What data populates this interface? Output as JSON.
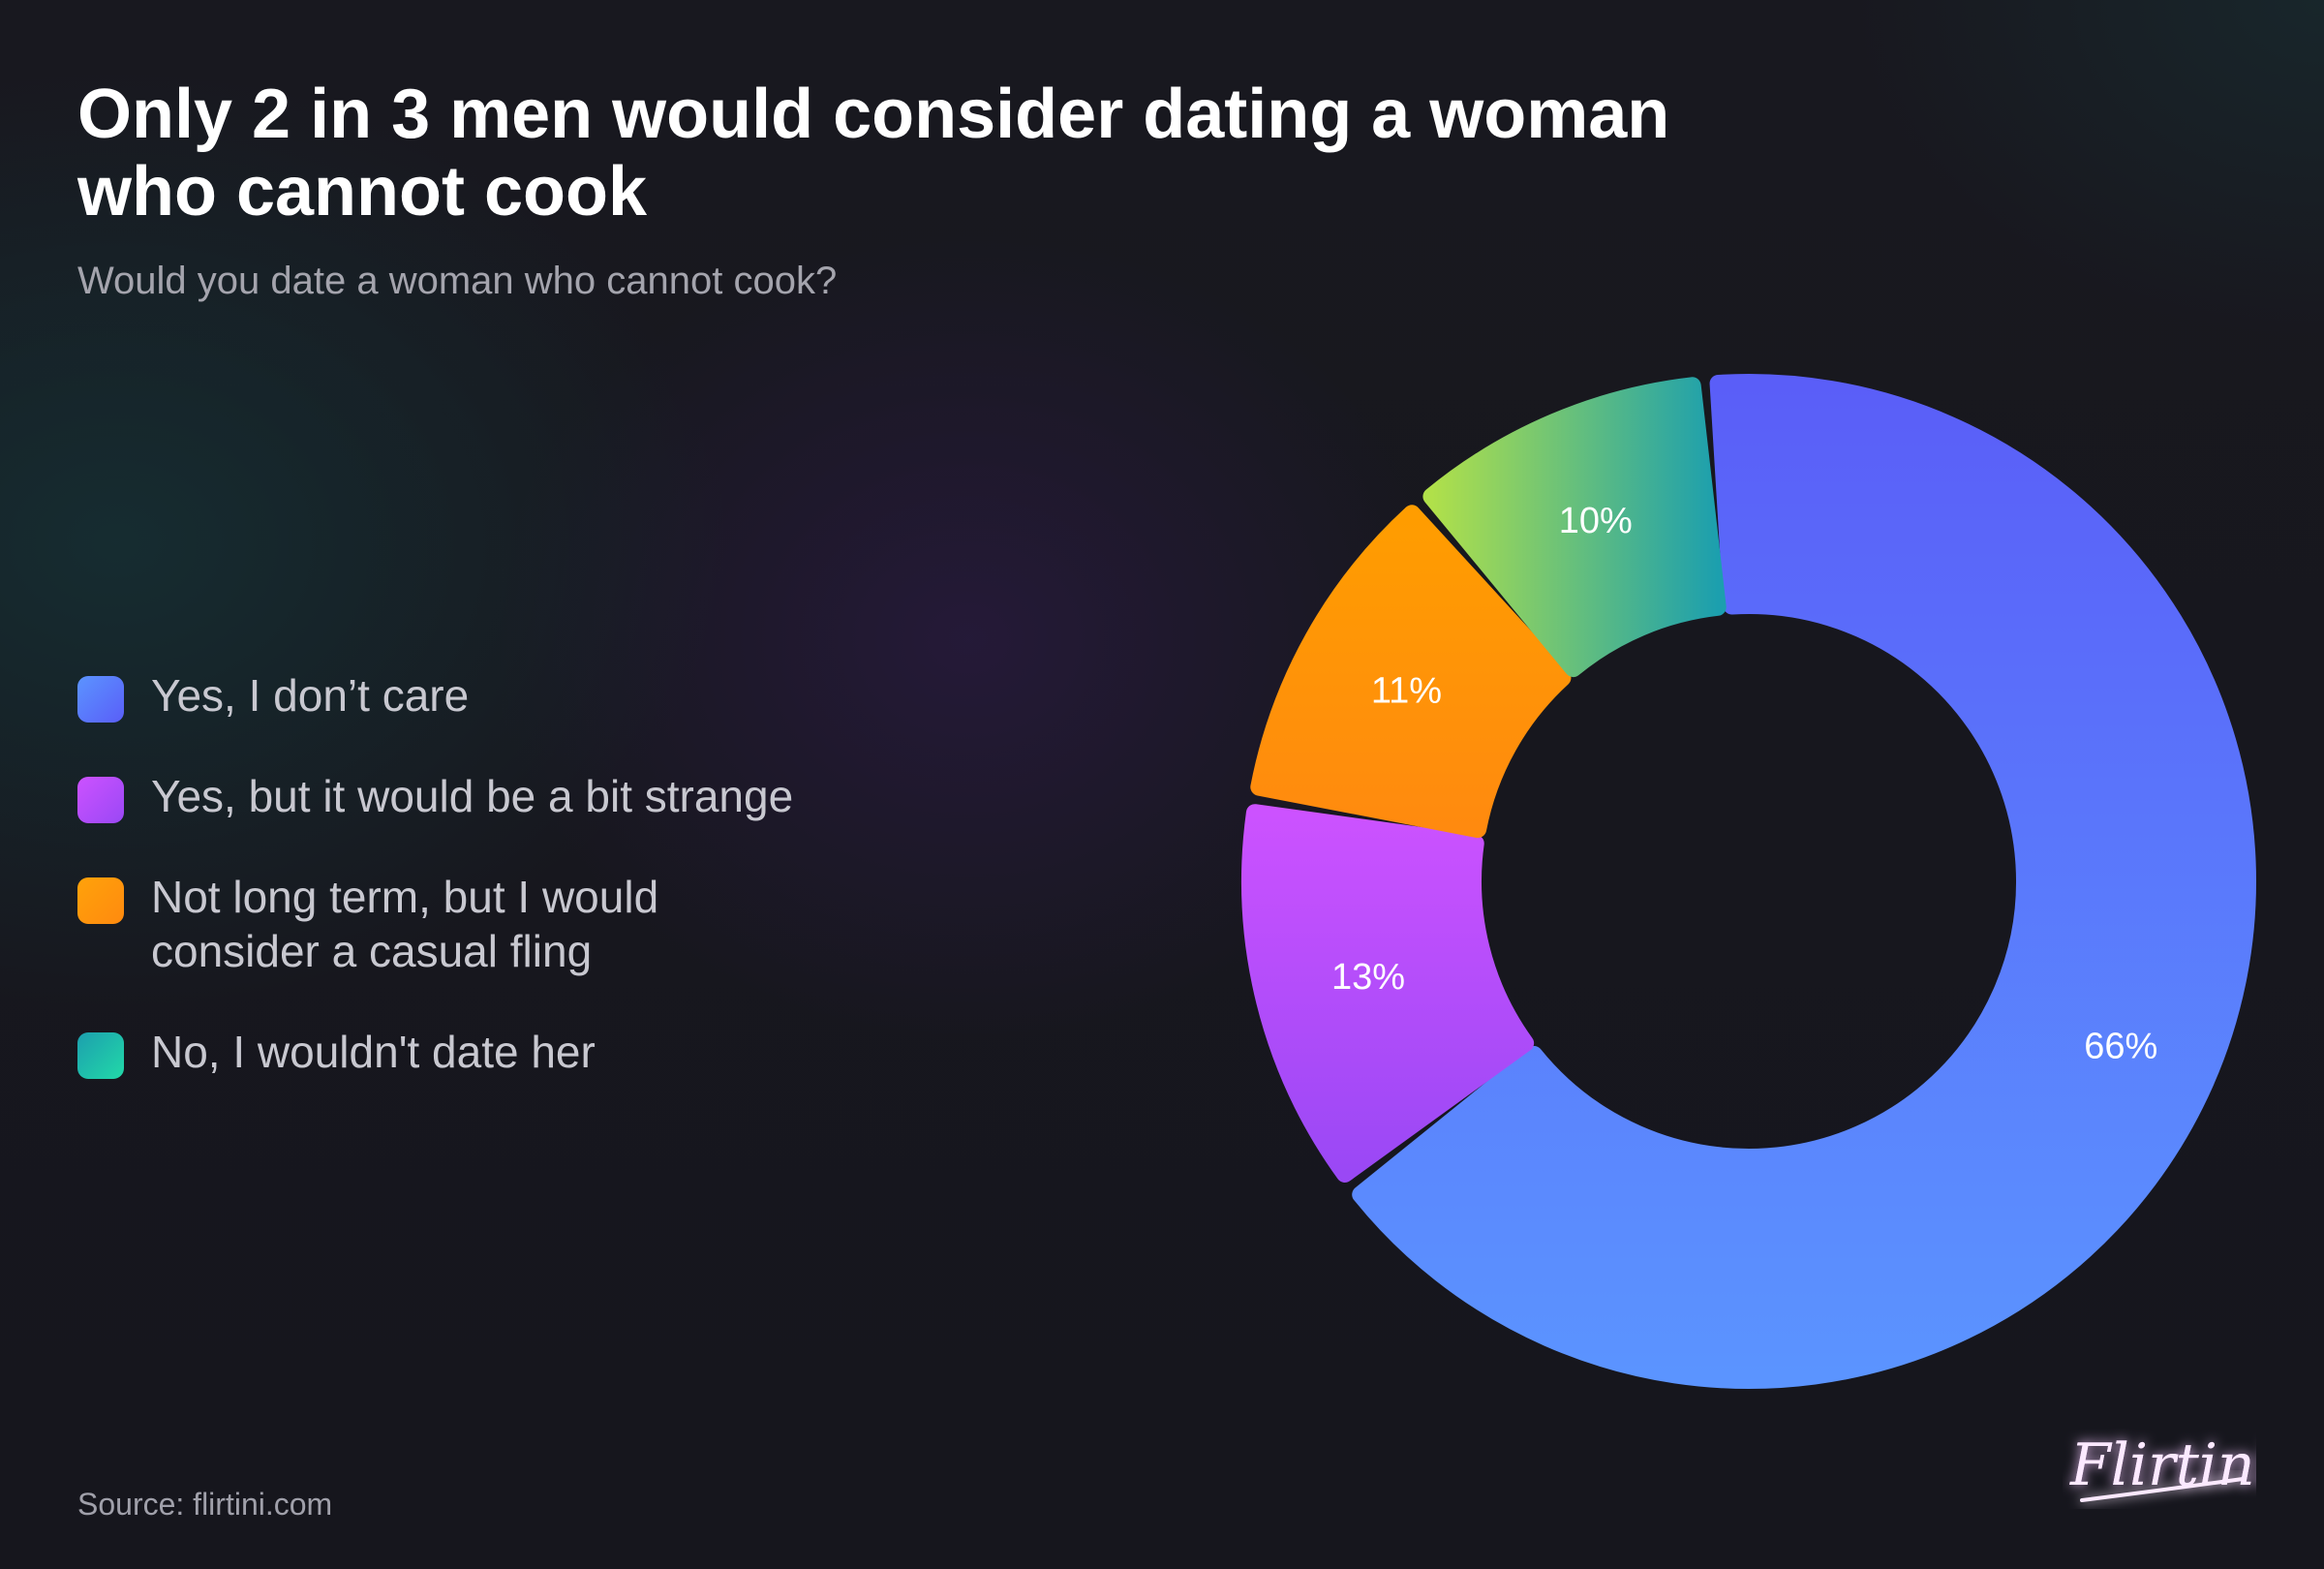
{
  "title": "Only 2 in 3 men would consider dating a woman who cannot cook",
  "subtitle": "Would you date a woman who cannot cook?",
  "source": "Source: flirtini.com",
  "logo": {
    "text": "Flirtini"
  },
  "chart_data": {
    "type": "pie",
    "donut": true,
    "title": "Only 2 in 3 men would consider dating a woman who cannot cook",
    "subtitle": "Would you date a woman who cannot cook?",
    "legend_position": "left",
    "slices": [
      {
        "label": "Yes, I don’t care",
        "value": 66,
        "value_label": "66%",
        "color_start": "#5a5ef8",
        "color_end": "#5b94ff"
      },
      {
        "label": "Yes, but it would be a bit strange",
        "value": 13,
        "value_label": "13%",
        "color_start": "#cc52ff",
        "color_end": "#9a48f5"
      },
      {
        "label": "Not long term, but I would consider a casual fling",
        "value": 11,
        "value_label": "11%",
        "color_start": "#ff9d00",
        "color_end": "#ff8a0f"
      },
      {
        "label": "No, I wouldn't date her",
        "value": 10,
        "value_label": "10%",
        "color_start": "#b0e04a",
        "color_end": "#1c9fae"
      }
    ]
  }
}
